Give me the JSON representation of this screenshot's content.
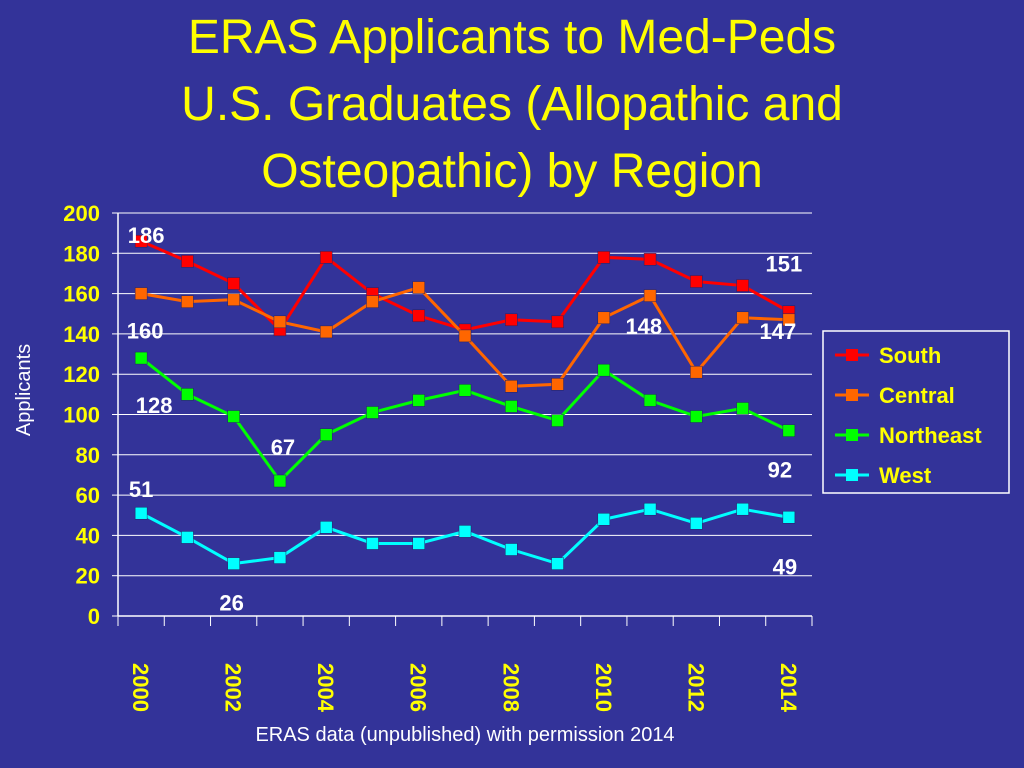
{
  "slide": {
    "title_lines": [
      "ERAS Applicants to Med-Peds",
      "U.S. Graduates (Allopathic and",
      "Osteopathic) by Region"
    ],
    "footnote": "ERAS data (unpublished) with permission 2014"
  },
  "colors": {
    "background": "#333399",
    "title": "#ffff00",
    "axis_text": "#ffff00",
    "data_label": "#ffffff"
  },
  "chart_data": {
    "type": "line",
    "ylabel": "Applicants",
    "xlabel": "",
    "ylim": [
      0,
      200
    ],
    "yticks": [
      0,
      20,
      40,
      60,
      80,
      100,
      120,
      140,
      160,
      180,
      200
    ],
    "x": [
      2000,
      2001,
      2002,
      2003,
      2004,
      2005,
      2006,
      2007,
      2008,
      2009,
      2010,
      2011,
      2012,
      2013,
      2014
    ],
    "xtick_labels": [
      "2000",
      "2002",
      "2004",
      "2006",
      "2008",
      "2010",
      "2012",
      "2014"
    ],
    "grid": true,
    "legend_position": "right",
    "series": [
      {
        "name": "South",
        "color": "#ff0000",
        "values": [
          186,
          176,
          165,
          142,
          178,
          160,
          149,
          142,
          147,
          146,
          178,
          177,
          166,
          164,
          151
        ]
      },
      {
        "name": "Central",
        "color": "#ff6600",
        "values": [
          160,
          156,
          157,
          146,
          141,
          156,
          163,
          139,
          114,
          115,
          148,
          159,
          121,
          148,
          147
        ]
      },
      {
        "name": "Northeast",
        "color": "#00ff00",
        "values": [
          128,
          110,
          99,
          67,
          90,
          101,
          107,
          112,
          104,
          97,
          122,
          107,
          99,
          103,
          92
        ]
      },
      {
        "name": "West",
        "color": "#00ffff",
        "values": [
          51,
          39,
          26,
          29,
          44,
          36,
          36,
          42,
          33,
          26,
          48,
          53,
          46,
          53,
          49
        ]
      }
    ],
    "data_labels": [
      {
        "series": "South",
        "x": 2000,
        "text": "186"
      },
      {
        "series": "South",
        "x": 2014,
        "text": "151"
      },
      {
        "series": "Central",
        "x": 2000,
        "text": "160"
      },
      {
        "series": "Central",
        "x": 2010,
        "text": "148"
      },
      {
        "series": "Central",
        "x": 2014,
        "text": "147"
      },
      {
        "series": "Northeast",
        "x": 2000,
        "text": "128"
      },
      {
        "series": "Northeast",
        "x": 2003,
        "text": "67"
      },
      {
        "series": "Northeast",
        "x": 2014,
        "text": "92"
      },
      {
        "series": "West",
        "x": 2000,
        "text": "51"
      },
      {
        "series": "West",
        "x": 2002,
        "text": "26"
      },
      {
        "series": "West",
        "x": 2014,
        "text": "49"
      }
    ]
  }
}
